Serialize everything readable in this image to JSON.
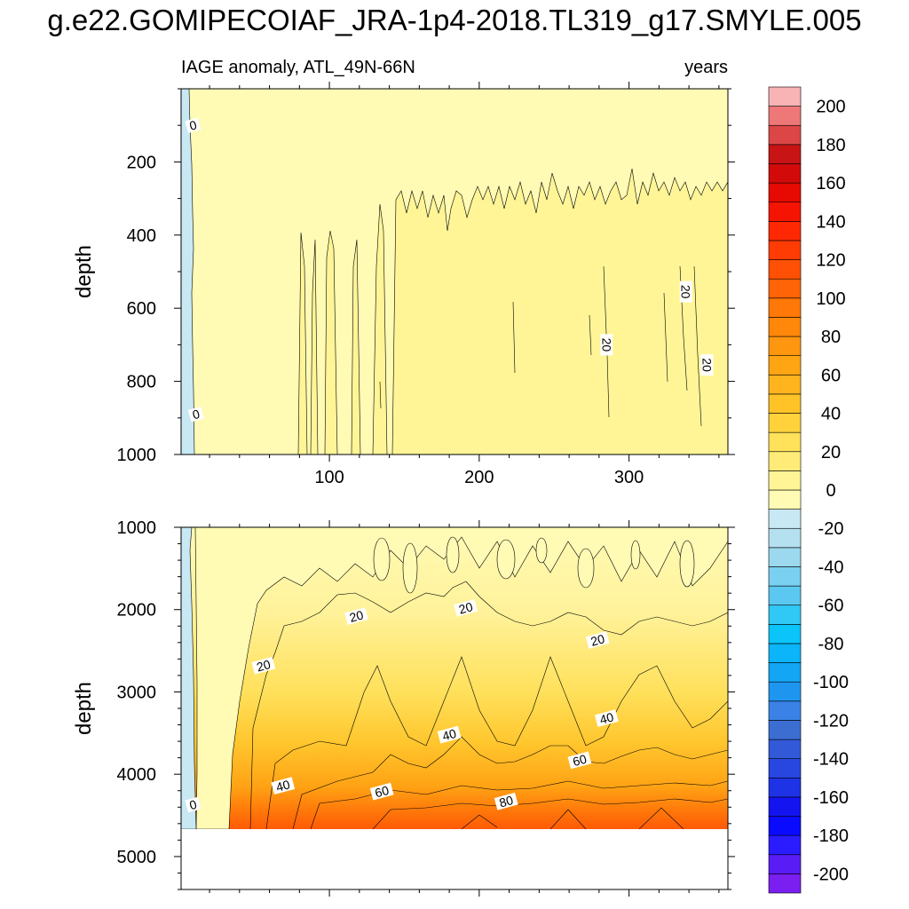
{
  "chart_data": {
    "type": "heatmap",
    "title": "g.e22.GOMIPECOIAF_JRA-1p4-2018.TL319_g17.SMYLE.005",
    "subtitle_left": "IAGE anomaly, ATL_49N-66N",
    "subtitle_right": "years",
    "xlim": [
      1,
      366
    ],
    "x_ticks": [
      100,
      200,
      300
    ],
    "x_tick_labels": [
      "100",
      "200",
      "300"
    ],
    "panels": [
      {
        "name": "upper",
        "ylabel": "depth",
        "ylim": [
          0,
          1000
        ],
        "y_ticks": [
          200,
          400,
          600,
          800,
          1000
        ],
        "y_tick_labels": [
          "200",
          "400",
          "600",
          "800",
          "1000"
        ],
        "contour_labels": [
          {
            "text": "0",
            "x": 9,
            "y": 100
          },
          {
            "text": "0",
            "x": 11,
            "y": 890
          },
          {
            "text": "20",
            "x": 285,
            "y": 700
          },
          {
            "text": "20",
            "x": 338,
            "y": 555
          },
          {
            "text": "20",
            "x": 352,
            "y": 755
          }
        ]
      },
      {
        "name": "lower",
        "ylabel": "depth",
        "ylim": [
          1000,
          5400
        ],
        "data_bottom_depth": 4630,
        "y_ticks": [
          1000,
          2000,
          3000,
          4000,
          5000
        ],
        "y_tick_labels": [
          "1000",
          "2000",
          "3000",
          "4000",
          "5000"
        ],
        "contour_labels": [
          {
            "text": "0",
            "x": 9,
            "y": 4370
          },
          {
            "text": "20",
            "x": 56,
            "y": 2680
          },
          {
            "text": "20",
            "x": 118,
            "y": 2080
          },
          {
            "text": "20",
            "x": 191,
            "y": 1980
          },
          {
            "text": "20",
            "x": 279,
            "y": 2370
          },
          {
            "text": "40",
            "x": 69,
            "y": 4140
          },
          {
            "text": "40",
            "x": 180,
            "y": 3520
          },
          {
            "text": "40",
            "x": 285,
            "y": 3320
          },
          {
            "text": "60",
            "x": 135,
            "y": 4210
          },
          {
            "text": "60",
            "x": 267,
            "y": 3830
          },
          {
            "text": "80",
            "x": 218,
            "y": 4330
          }
        ]
      }
    ],
    "colorbar": {
      "levels": [
        -210,
        -200,
        -190,
        -180,
        -170,
        -160,
        -150,
        -140,
        -130,
        -120,
        -110,
        -100,
        -90,
        -80,
        -70,
        -60,
        -50,
        -40,
        -30,
        -20,
        -10,
        0,
        10,
        20,
        30,
        40,
        50,
        60,
        70,
        80,
        90,
        100,
        110,
        120,
        130,
        140,
        150,
        160,
        170,
        180,
        190,
        200,
        210
      ],
      "tick_values": [
        -200,
        -180,
        -160,
        -140,
        -120,
        -100,
        -80,
        -60,
        -40,
        -20,
        0,
        20,
        40,
        60,
        80,
        100,
        120,
        140,
        160,
        180,
        200
      ],
      "tick_labels": [
        "-200",
        "-180",
        "-160",
        "-140",
        "-120",
        "-100",
        "-80",
        "-60",
        "-40",
        "-20",
        "0",
        "20",
        "40",
        "60",
        "80",
        "100",
        "120",
        "140",
        "160",
        "180",
        "200"
      ],
      "colors": [
        "#7b1ef0",
        "#5a1cf5",
        "#2a1cff",
        "#0a0aff",
        "#1414f0",
        "#1e32e6",
        "#2846e0",
        "#325ad8",
        "#3c6ed2",
        "#3a82e6",
        "#1e96f0",
        "#12a6f5",
        "#0cb4fa",
        "#0ac4fa",
        "#30c8f5",
        "#5ac8f0",
        "#7ad0f0",
        "#9cd8ee",
        "#b4e0f0",
        "#c8e8f4",
        "#fffab4",
        "#fff596",
        "#ffeb78",
        "#ffe15a",
        "#ffd23c",
        "#ffc328",
        "#ffb41e",
        "#ffa514",
        "#ff960f",
        "#ff870a",
        "#ff7808",
        "#ff6406",
        "#ff5005",
        "#ff3c04",
        "#ff2803",
        "#f51402",
        "#e60a02",
        "#d20a0a",
        "#c81414",
        "#dc4646",
        "#ee7878",
        "#f8b4b4"
      ]
    },
    "colors": {
      "zero_band": "#fffab4",
      "level_10_20": "#fff596",
      "negative_band": "#c8e8f4",
      "contour_line": "#000000",
      "background": "#ffffff"
    }
  }
}
